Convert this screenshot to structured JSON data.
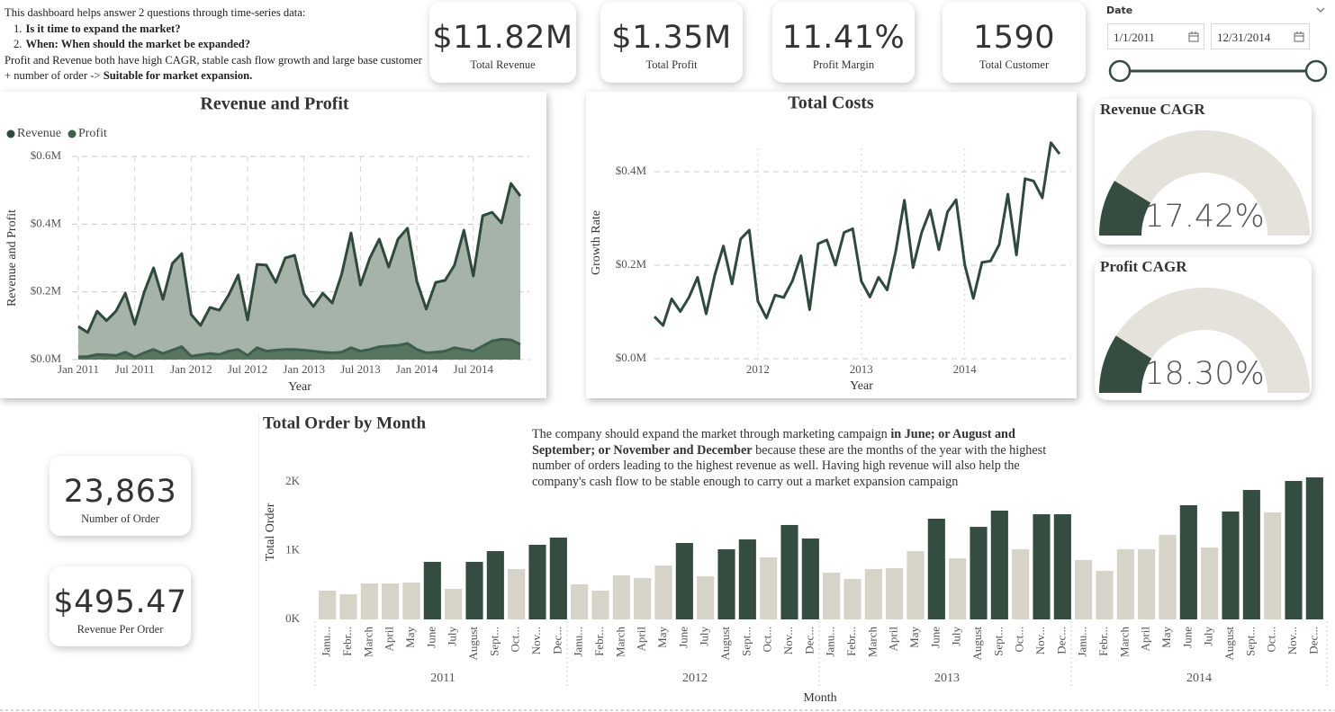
{
  "intro": {
    "heading": "This dashboard helps answer 2 questions through time-series data:",
    "questions": [
      {
        "number": "1.",
        "text": "Is it time to expand the market?"
      },
      {
        "number": "2.",
        "text": "When: When should the market be expanded?"
      }
    ],
    "conclusion": [
      {
        "text": "Profit and Revenue both have high CAGR, stable cash flow growth and large base customer + number of order -> ",
        "bold": false
      },
      {
        "text": "Suitable for market expansion.",
        "bold": true
      }
    ]
  },
  "kpis": [
    {
      "value": "$11.82M",
      "label": "Total Revenue"
    },
    {
      "value": "$1.35M",
      "label": "Total Profit"
    },
    {
      "value": "11.41%",
      "label": "Profit Margin"
    },
    {
      "value": "1590",
      "label": "Total Customer"
    }
  ],
  "order_kpis": [
    {
      "value": "23,863",
      "label": "Number of Order"
    },
    {
      "value": "$495.47",
      "label": "Revenue Per Order"
    }
  ],
  "date_filter": {
    "title": "Date",
    "start": "1/1/2011",
    "end": "12/31/2014"
  },
  "chart_data": [
    {
      "type": "area",
      "title": "Revenue and Profit",
      "x_label": "Year",
      "y_label": "Revenue and Profit",
      "legend": "top-left",
      "grid": true,
      "x": [
        "2011-01",
        "2011-02",
        "2011-03",
        "2011-04",
        "2011-05",
        "2011-06",
        "2011-07",
        "2011-08",
        "2011-09",
        "2011-10",
        "2011-11",
        "2011-12",
        "2012-01",
        "2012-02",
        "2012-03",
        "2012-04",
        "2012-05",
        "2012-06",
        "2012-07",
        "2012-08",
        "2012-09",
        "2012-10",
        "2012-11",
        "2012-12",
        "2013-01",
        "2013-02",
        "2013-03",
        "2013-04",
        "2013-05",
        "2013-06",
        "2013-07",
        "2013-08",
        "2013-09",
        "2013-10",
        "2013-11",
        "2013-12",
        "2014-01",
        "2014-02",
        "2014-03",
        "2014-04",
        "2014-05",
        "2014-06",
        "2014-07",
        "2014-08",
        "2014-09",
        "2014-10",
        "2014-11",
        "2014-12"
      ],
      "xlim": [
        "2011-01",
        "2014-12"
      ],
      "xticks": [
        {
          "value": "2011-01",
          "label": "Jan 2011"
        },
        {
          "value": "2011-07",
          "label": "Jul 2011"
        },
        {
          "value": "2012-01",
          "label": "Jan 2012"
        },
        {
          "value": "2012-07",
          "label": "Jul 2012"
        },
        {
          "value": "2013-01",
          "label": "Jan 2013"
        },
        {
          "value": "2013-07",
          "label": "Jul 2013"
        },
        {
          "value": "2014-01",
          "label": "Jan 2014"
        },
        {
          "value": "2014-07",
          "label": "Jul 2014"
        }
      ],
      "ylim": [
        0,
        600000
      ],
      "yticks": [
        {
          "value": 0,
          "label": "$0.0M"
        },
        {
          "value": 200000,
          "label": "$0.2M"
        },
        {
          "value": 400000,
          "label": "$0.4M"
        },
        {
          "value": 600000,
          "label": "$0.6M"
        }
      ],
      "series": [
        {
          "name": "Revenue",
          "color": "#2f4a3c",
          "fill": "#a6b3a9",
          "values": [
            98000,
            80000,
            143000,
            115000,
            143000,
            196000,
            104000,
            199000,
            271000,
            178000,
            284000,
            313000,
            133000,
            101000,
            154000,
            146000,
            191000,
            250000,
            117000,
            281000,
            279000,
            228000,
            300000,
            308000,
            194000,
            157000,
            196000,
            167000,
            252000,
            374000,
            220000,
            300000,
            356000,
            273000,
            356000,
            388000,
            231000,
            149000,
            228000,
            234000,
            279000,
            382000,
            247000,
            425000,
            435000,
            404000,
            520000,
            483000
          ]
        },
        {
          "name": "Profit",
          "color": "#3e5f4d",
          "fill": "#58765f",
          "values": [
            8000,
            9000,
            15000,
            14000,
            12000,
            22000,
            8000,
            20000,
            30000,
            18000,
            28000,
            38000,
            10000,
            14000,
            18000,
            15000,
            25000,
            30000,
            12000,
            35000,
            25000,
            28000,
            30000,
            30000,
            28000,
            25000,
            22000,
            20000,
            22000,
            35000,
            25000,
            30000,
            38000,
            40000,
            42000,
            48000,
            30000,
            20000,
            22000,
            25000,
            35000,
            30000,
            25000,
            40000,
            55000,
            60000,
            58000,
            45000
          ]
        }
      ]
    },
    {
      "type": "line",
      "title": "Total Costs",
      "x_label": "Year",
      "y_label": "Growth Rate",
      "grid": true,
      "color": "#2f4a3c",
      "x": [
        "2011-01",
        "2011-02",
        "2011-03",
        "2011-04",
        "2011-05",
        "2011-06",
        "2011-07",
        "2011-08",
        "2011-09",
        "2011-10",
        "2011-11",
        "2011-12",
        "2012-01",
        "2012-02",
        "2012-03",
        "2012-04",
        "2012-05",
        "2012-06",
        "2012-07",
        "2012-08",
        "2012-09",
        "2012-10",
        "2012-11",
        "2012-12",
        "2013-01",
        "2013-02",
        "2013-03",
        "2013-04",
        "2013-05",
        "2013-06",
        "2013-07",
        "2013-08",
        "2013-09",
        "2013-10",
        "2013-11",
        "2013-12",
        "2014-01",
        "2014-02",
        "2014-03",
        "2014-04",
        "2014-05",
        "2014-06",
        "2014-07",
        "2014-08",
        "2014-09",
        "2014-10",
        "2014-11",
        "2014-12"
      ],
      "xlim": [
        "2011-01",
        "2014-12"
      ],
      "xticks": [
        {
          "value": "2012-01",
          "label": "2012"
        },
        {
          "value": "2013-01",
          "label": "2013"
        },
        {
          "value": "2014-01",
          "label": "2014"
        }
      ],
      "ylim": [
        0,
        450000
      ],
      "yticks": [
        {
          "value": 0,
          "label": "$0.0M"
        },
        {
          "value": 200000,
          "label": "$0.2M"
        },
        {
          "value": 400000,
          "label": "$0.4M"
        }
      ],
      "values": [
        90000,
        71000,
        128000,
        101000,
        131000,
        174000,
        96000,
        179000,
        241000,
        160000,
        256000,
        275000,
        123000,
        87000,
        136000,
        131000,
        166000,
        220000,
        105000,
        246000,
        254000,
        200000,
        270000,
        278000,
        166000,
        132000,
        174000,
        147000,
        230000,
        339000,
        195000,
        270000,
        318000,
        233000,
        314000,
        340000,
        201000,
        129000,
        206000,
        209000,
        244000,
        352000,
        222000,
        385000,
        380000,
        344000,
        462000,
        438000
      ]
    },
    {
      "type": "gauge",
      "title": "Revenue CAGR",
      "values": [
        17.42
      ],
      "value_labels": [
        "17.42%"
      ],
      "range": [
        0,
        100
      ],
      "color": "#344d40",
      "track": "#e5e1db"
    },
    {
      "type": "gauge",
      "title": "Profit CAGR",
      "values": [
        18.3
      ],
      "value_labels": [
        "18.30%"
      ],
      "range": [
        0,
        100
      ],
      "color": "#344d40",
      "track": "#e5e1db"
    },
    {
      "type": "bar",
      "title": "Total Order by Month",
      "annotation": [
        {
          "text": "The company should expand the market through marketing campaign ",
          "bold": false
        },
        {
          "text": "in June; or August and September; or November and December",
          "bold": true
        },
        {
          "text": " because these are the months of the year with the highest number of orders leading to the highest revenue as well. Having high revenue will also help the company's cash flow to be stable enough to carry out a market expansion campaign",
          "bold": false
        }
      ],
      "x_label": "Month",
      "y_label": "Total Order",
      "categories": [
        "Janu...",
        "Febr...",
        "March",
        "April",
        "May",
        "June",
        "July",
        "August",
        "Sept...",
        "Oct...",
        "Nov...",
        "Dec...",
        "Janu...",
        "Febr...",
        "March",
        "April",
        "May",
        "June",
        "July",
        "August",
        "Sept...",
        "Oct...",
        "Nov...",
        "Dec...",
        "Janu...",
        "Febr...",
        "March",
        "April",
        "May",
        "June",
        "July",
        "August",
        "Sept...",
        "Oct...",
        "Nov...",
        "Dec...",
        "Janu...",
        "Febr...",
        "March",
        "April",
        "May",
        "June",
        "July",
        "August",
        "Sept...",
        "Oct...",
        "Nov...",
        "Dec..."
      ],
      "groups": [
        "2011",
        "2012",
        "2013",
        "2014"
      ],
      "values": [
        418,
        366,
        523,
        523,
        536,
        837,
        444,
        837,
        993,
        732,
        1085,
        1190,
        510,
        418,
        641,
        601,
        784,
        1111,
        627,
        1020,
        1163,
        902,
        1373,
        1176,
        680,
        588,
        732,
        745,
        993,
        1464,
        889,
        1346,
        1582,
        1020,
        1529,
        1529,
        863,
        706,
        1020,
        1020,
        1229,
        1660,
        1046,
        1569,
        1882,
        1556,
        2013,
        2065
      ],
      "colors": [
        "#d6d4c9",
        "#d6d4c9",
        "#d6d4c9",
        "#d6d4c9",
        "#d6d4c9",
        "#344d40",
        "#d6d4c9",
        "#344d40",
        "#344d40",
        "#d6d4c9",
        "#344d40",
        "#344d40",
        "#d6d4c9",
        "#d6d4c9",
        "#d6d4c9",
        "#d6d4c9",
        "#d6d4c9",
        "#344d40",
        "#d6d4c9",
        "#344d40",
        "#344d40",
        "#d6d4c9",
        "#344d40",
        "#344d40",
        "#d6d4c9",
        "#d6d4c9",
        "#d6d4c9",
        "#d6d4c9",
        "#d6d4c9",
        "#344d40",
        "#d6d4c9",
        "#344d40",
        "#344d40",
        "#d6d4c9",
        "#344d40",
        "#344d40",
        "#d6d4c9",
        "#d6d4c9",
        "#d6d4c9",
        "#d6d4c9",
        "#d6d4c9",
        "#344d40",
        "#d6d4c9",
        "#344d40",
        "#344d40",
        "#d6d4c9",
        "#344d40",
        "#344d40"
      ],
      "ylim": [
        0,
        2000
      ],
      "yticks": [
        {
          "value": 0,
          "label": "0K"
        },
        {
          "value": 1000,
          "label": "1K"
        },
        {
          "value": 2000,
          "label": "2K"
        }
      ]
    }
  ]
}
